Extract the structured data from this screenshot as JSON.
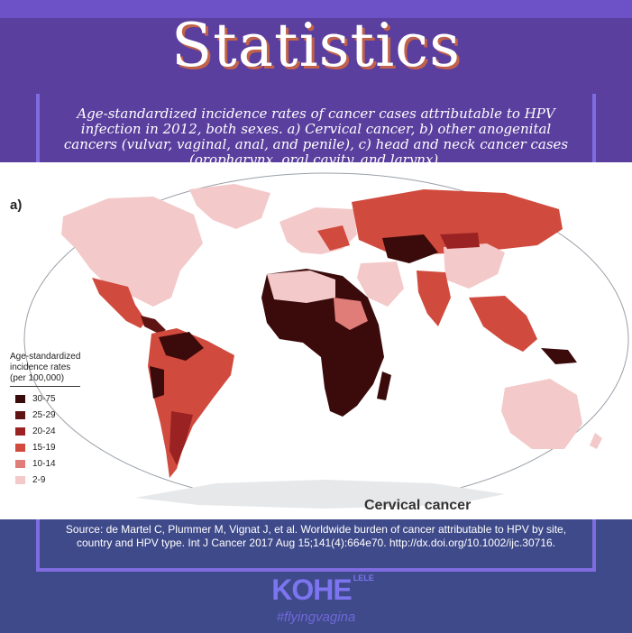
{
  "title": "Statistics",
  "subtitle": "Age-standardized incidence rates of cancer cases attributable to HPV infection in 2012, both sexes. a) Cervical cancer, b) other anogenital cancers (vulvar, vaginal, anal, and penile), c) head and neck cancer cases (oropharynx, oral cavity, and larynx).",
  "map": {
    "panel_label": "a)",
    "caption": "Cervical cancer",
    "legend": {
      "title_lines": [
        "Age-standardized",
        "incidence rates",
        "(per 100,000)"
      ],
      "items": [
        {
          "label": "30-75",
          "color": "#3b0a0a"
        },
        {
          "label": "25-29",
          "color": "#5e1412"
        },
        {
          "label": "20-24",
          "color": "#9b2222"
        },
        {
          "label": "15-19",
          "color": "#d14a3e"
        },
        {
          "label": "10-14",
          "color": "#e07d78"
        },
        {
          "label": "2-9",
          "color": "#f3c9c9"
        }
      ]
    }
  },
  "source": "Source: de Martel C, Plummer M, Vignat J, et al. Worldwide burden of cancer attributable to HPV by site, country and HPV type. Int J Cancer 2017 Aug 15;141(4):664e70. http://dx.doi.org/10.1002/ijc.30716.",
  "logo": {
    "main": "KOHE",
    "stack": "LELE"
  },
  "hashtag": "#flyingvagina"
}
